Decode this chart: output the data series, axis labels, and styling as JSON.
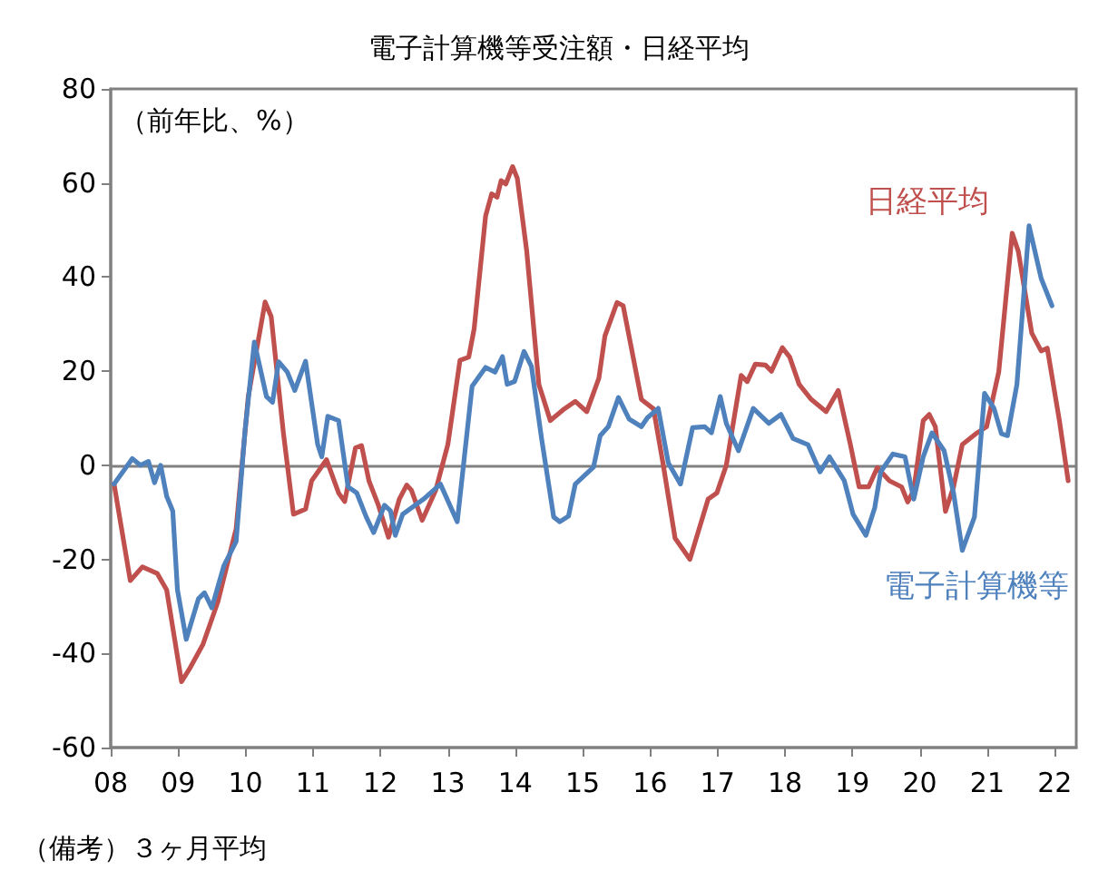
{
  "chart_data": {
    "type": "line",
    "title": "電子計算機等受注額・日経平均",
    "ylabel": "（前年比、%）",
    "annotations": [
      "（備考）３ヶ月平均"
    ],
    "xlim": [
      2008,
      2022.32
    ],
    "xticks": [
      {
        "value": 2008,
        "label": "08"
      },
      {
        "value": 2009,
        "label": "09"
      },
      {
        "value": 2010,
        "label": "10"
      },
      {
        "value": 2011,
        "label": "11"
      },
      {
        "value": 2012,
        "label": "12"
      },
      {
        "value": 2013,
        "label": "13"
      },
      {
        "value": 2014,
        "label": "14"
      },
      {
        "value": 2015,
        "label": "15"
      },
      {
        "value": 2016,
        "label": "16"
      },
      {
        "value": 2017,
        "label": "17"
      },
      {
        "value": 2018,
        "label": "18"
      },
      {
        "value": 2019,
        "label": "19"
      },
      {
        "value": 2020,
        "label": "20"
      },
      {
        "value": 2021,
        "label": "21"
      },
      {
        "value": 2022,
        "label": "22"
      }
    ],
    "ylim": [
      -60,
      80
    ],
    "yticks": [
      -60,
      -40,
      -20,
      0,
      20,
      40,
      60,
      80
    ],
    "ref_lines": [
      {
        "axis": "y",
        "value": 0,
        "color": "#808080"
      }
    ],
    "grid": false,
    "legend": false,
    "marker": "none",
    "line_style": "solid",
    "series": [
      {
        "name": "日経平均",
        "color": "#c0504d",
        "x": [
          2008.05,
          2008.29,
          2008.47,
          2008.69,
          2008.83,
          2009.05,
          2009.18,
          2009.37,
          2009.59,
          2009.86,
          2010.04,
          2010.29,
          2010.38,
          2010.56,
          2010.71,
          2010.89,
          2010.98,
          2011.2,
          2011.38,
          2011.47,
          2011.63,
          2011.72,
          2011.83,
          2011.97,
          2012.12,
          2012.28,
          2012.39,
          2012.46,
          2012.62,
          2012.82,
          2013.0,
          2013.18,
          2013.31,
          2013.39,
          2013.56,
          2013.65,
          2013.73,
          2013.79,
          2013.86,
          2013.96,
          2014.03,
          2014.17,
          2014.35,
          2014.52,
          2014.71,
          2014.89,
          2015.06,
          2015.24,
          2015.33,
          2015.51,
          2015.6,
          2015.74,
          2015.87,
          2016.05,
          2016.19,
          2016.37,
          2016.59,
          2016.86,
          2016.99,
          2017.13,
          2017.35,
          2017.44,
          2017.56,
          2017.71,
          2017.8,
          2017.96,
          2018.07,
          2018.21,
          2018.39,
          2018.61,
          2018.79,
          2018.97,
          2019.1,
          2019.24,
          2019.37,
          2019.55,
          2019.73,
          2019.82,
          2019.91,
          2020.05,
          2020.14,
          2020.23,
          2020.38,
          2020.5,
          2020.63,
          2020.85,
          2020.99,
          2021.17,
          2021.37,
          2021.46,
          2021.66,
          2021.8,
          2021.89,
          2022.07,
          2022.2
        ],
        "values": [
          -4,
          -24.5,
          -21.6,
          -23,
          -26.5,
          -46,
          -43,
          -38,
          -29,
          -13.5,
          14.6,
          34.7,
          31.6,
          7,
          -10.4,
          -9.3,
          -3.3,
          1.2,
          -5.9,
          -7.7,
          3.7,
          4.2,
          -3.3,
          -8.5,
          -15.3,
          -7.2,
          -4.2,
          -5.3,
          -11.7,
          -5.3,
          4.4,
          22.3,
          23,
          29,
          53,
          57.7,
          57,
          60.5,
          59.8,
          63.5,
          61,
          45.5,
          17.2,
          9.5,
          11.8,
          13.6,
          11.4,
          18.5,
          27.5,
          34.6,
          33.9,
          23.6,
          14,
          12,
          0.5,
          -15.5,
          -20,
          -7.2,
          -5.9,
          0,
          19.1,
          17.8,
          21.5,
          21.3,
          20,
          25,
          23,
          17.2,
          14,
          11.4,
          15.9,
          4.4,
          -4.6,
          -4.6,
          -0.5,
          -3.3,
          -4.6,
          -7.8,
          -5.3,
          9.5,
          10.8,
          8.2,
          -9.8,
          -4.6,
          4.4,
          6.9,
          8.2,
          19.8,
          49.3,
          45.5,
          28.1,
          24.3,
          24.9,
          9.5,
          -3.3
        ]
      },
      {
        "name": "電子計算機等",
        "color": "#4f81bd",
        "x": [
          2008.05,
          2008.32,
          2008.44,
          2008.56,
          2008.65,
          2008.74,
          2008.83,
          2008.92,
          2008.99,
          2009.12,
          2009.3,
          2009.39,
          2009.5,
          2009.68,
          2009.86,
          2009.99,
          2010.13,
          2010.31,
          2010.4,
          2010.49,
          2010.62,
          2010.73,
          2010.89,
          2011.07,
          2011.13,
          2011.22,
          2011.38,
          2011.52,
          2011.65,
          2011.79,
          2011.9,
          2012.06,
          2012.15,
          2012.22,
          2012.33,
          2012.64,
          2012.89,
          2013.14,
          2013.36,
          2013.56,
          2013.7,
          2013.81,
          2013.88,
          2013.99,
          2014.13,
          2014.24,
          2014.39,
          2014.57,
          2014.66,
          2014.79,
          2014.89,
          2015.16,
          2015.26,
          2015.38,
          2015.53,
          2015.69,
          2015.87,
          2015.96,
          2016.12,
          2016.27,
          2016.45,
          2016.63,
          2016.81,
          2016.91,
          2017.04,
          2017.13,
          2017.31,
          2017.53,
          2017.76,
          2017.94,
          2018.12,
          2018.34,
          2018.52,
          2018.66,
          2018.88,
          2019.01,
          2019.2,
          2019.33,
          2019.42,
          2019.6,
          2019.78,
          2019.91,
          2020.05,
          2020.18,
          2020.36,
          2020.5,
          2020.63,
          2020.81,
          2020.96,
          2021.1,
          2021.21,
          2021.3,
          2021.44,
          2021.62,
          2021.8,
          2021.96
        ],
        "values": [
          -4,
          1.4,
          0,
          0.8,
          -3.7,
          0,
          -6.6,
          -9.7,
          -26.5,
          -37,
          -28.4,
          -27.1,
          -30.3,
          -21.3,
          -16.2,
          7,
          26.2,
          14.6,
          13.4,
          22,
          19.8,
          15.9,
          22.1,
          4.4,
          1.8,
          10.4,
          9.5,
          -4.6,
          -5.9,
          -11,
          -14.3,
          -8.5,
          -9.7,
          -14.9,
          -10.4,
          -7.2,
          -4,
          -12,
          16.8,
          20.8,
          19.8,
          23.1,
          17.2,
          17.8,
          24.2,
          21,
          5.7,
          -11,
          -12,
          -10.8,
          -4,
          -0.4,
          6.3,
          8.2,
          14.4,
          9.8,
          8.2,
          10.1,
          12.1,
          0.5,
          -4,
          8,
          8.2,
          6.9,
          14.6,
          8.9,
          3.1,
          12.1,
          8.9,
          10.8,
          5.7,
          4.4,
          -1.4,
          1.8,
          -3.3,
          -10.4,
          -14.9,
          -9.1,
          -1.4,
          2.4,
          1.8,
          -7.2,
          1.8,
          6.9,
          3.1,
          -5.9,
          -18.1,
          -11,
          15.3,
          12.1,
          6.7,
          6.3,
          17.2,
          50.9,
          39.7,
          33.9
        ]
      }
    ]
  }
}
